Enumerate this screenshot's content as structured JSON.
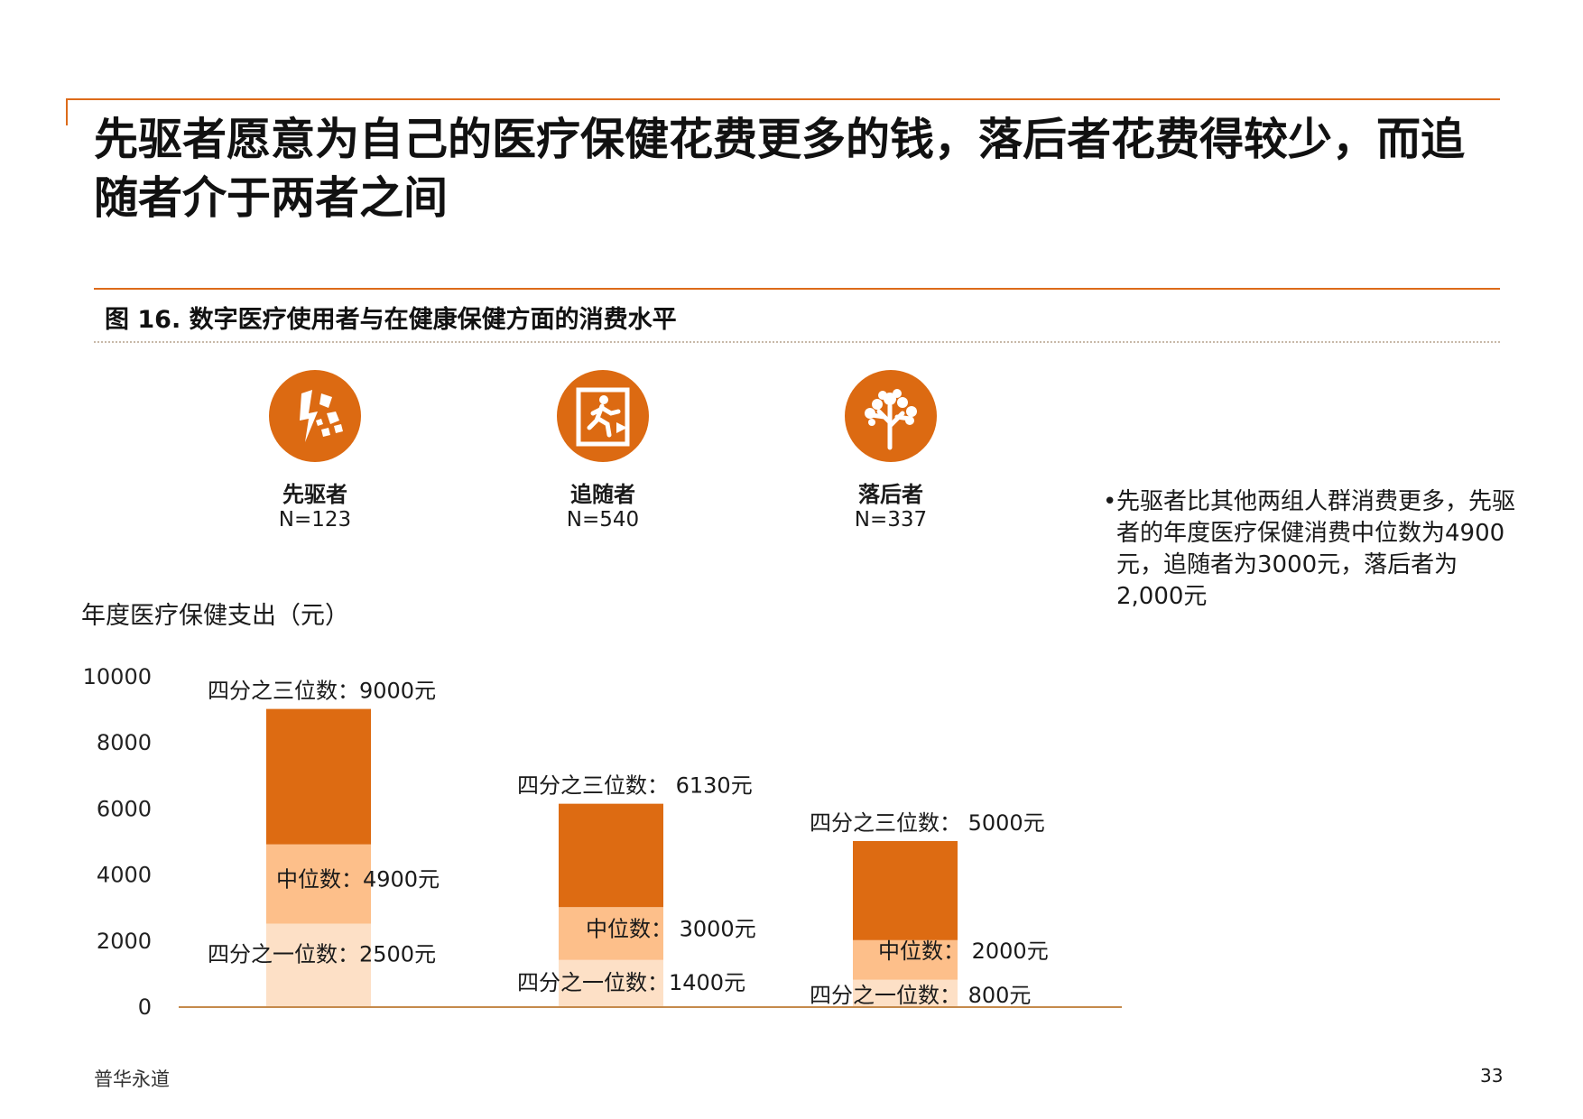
{
  "title": "先驱者愿意为自己的医疗保健花费更多的钱，落后者花费得较少，而追随者介于两者之间",
  "figure_title": "图 16. 数字医疗使用者与在健康保健方面的消费水平",
  "groups": [
    {
      "name": "先驱者",
      "n": "N=123",
      "icon": "lightning-breaking-icon"
    },
    {
      "name": "追随者",
      "n": "N=540",
      "icon": "exit-running-man-icon"
    },
    {
      "name": "落后者",
      "n": "N=337",
      "icon": "tree-icon"
    }
  ],
  "note": "先驱者比其他两组人群消费更多，先驱者的年度医疗保健消费中位数为4900元，追随者为3000元，落后者为2,000元",
  "footer": "普华永道",
  "page_number": "33",
  "colors": {
    "accent": "#dd6b12",
    "q3": "#dd6b12",
    "median": "#fdbf8a",
    "q1": "#fde0c6"
  },
  "chart_data": {
    "type": "bar",
    "ylabel": "年度医疗保健支出（元）",
    "ylim": [
      0,
      10000
    ],
    "yticks": [
      "10000",
      "8000",
      "6000",
      "4000",
      "2000",
      "0"
    ],
    "categories": [
      "先驱者",
      "追随者",
      "落后者"
    ],
    "series": [
      {
        "name": "四分之一位数",
        "values": [
          2500,
          1400,
          800
        ]
      },
      {
        "name": "中位数",
        "values": [
          4900,
          3000,
          2000
        ]
      },
      {
        "name": "四分之三位数",
        "values": [
          9000,
          6130,
          5000
        ]
      }
    ],
    "labels": [
      {
        "q3": "四分之三位数：9000元",
        "median": "中位数：4900元",
        "q1": "四分之一位数：2500元"
      },
      {
        "q3": "四分之三位数： 6130元",
        "median": "中位数： 3000元",
        "q1": "四分之一位数：1400元"
      },
      {
        "q3": "四分之三位数： 5000元",
        "median": "中位数： 2000元",
        "q1": "四分之一位数： 800元"
      }
    ]
  }
}
